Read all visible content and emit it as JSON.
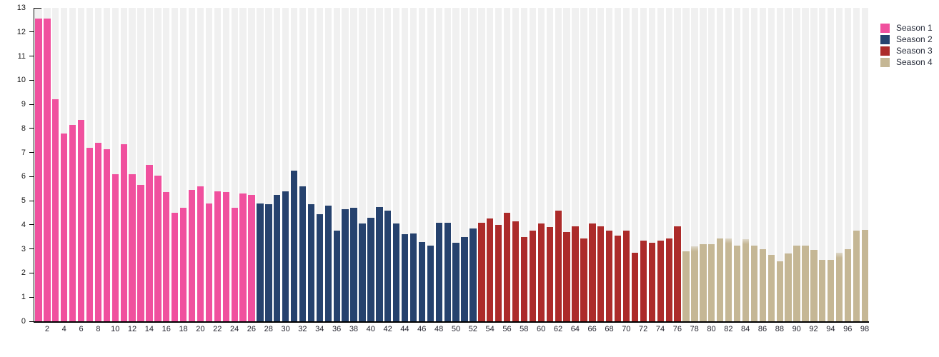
{
  "chart_data": {
    "type": "bar",
    "title": "",
    "xlabel": "",
    "ylabel": "",
    "ylim": [
      0,
      13
    ],
    "y_ticks": [
      0,
      1,
      2,
      3,
      4,
      5,
      6,
      7,
      8,
      9,
      10,
      11,
      12,
      13
    ],
    "x_tick_labels": [
      "2",
      "4",
      "6",
      "8",
      "10",
      "12",
      "14",
      "16",
      "18",
      "20",
      "22",
      "24",
      "26",
      "28",
      "30",
      "32",
      "34",
      "36",
      "38",
      "40",
      "42",
      "44",
      "46",
      "48",
      "50",
      "52",
      "54",
      "56",
      "58",
      "60",
      "62",
      "64",
      "66",
      "68",
      "70",
      "72",
      "74",
      "76",
      "78",
      "80",
      "82",
      "84",
      "86",
      "88",
      "90",
      "92",
      "94",
      "96",
      "98"
    ],
    "total_bars": 98,
    "legend_position": "top-right-outside",
    "grid": "full-height light gray column stripe behind each bar",
    "fade_top_episodes": [
      78,
      82,
      84,
      95
    ],
    "series": [
      {
        "name": "Season 1",
        "color": "#f0509e",
        "first_episode": 1,
        "values": [
          12.55,
          12.55,
          9.2,
          7.8,
          8.15,
          8.35,
          7.2,
          7.4,
          7.15,
          6.1,
          7.35,
          6.1,
          5.65,
          6.5,
          6.05,
          5.35,
          4.5,
          4.7,
          5.45,
          5.6,
          4.9,
          5.4,
          5.35,
          4.7,
          5.3,
          5.25
        ]
      },
      {
        "name": "Season 2",
        "color": "#26426e",
        "first_episode": 27,
        "values": [
          4.9,
          4.85,
          5.25,
          5.4,
          6.25,
          5.6,
          4.85,
          4.45,
          4.8,
          3.75,
          4.65,
          4.7,
          4.05,
          4.3,
          4.75,
          4.6,
          4.05,
          3.6,
          3.65,
          3.3,
          3.15,
          4.1,
          4.1,
          3.25,
          3.5,
          3.85
        ]
      },
      {
        "name": "Season 3",
        "color": "#ac2b2a",
        "first_episode": 53,
        "values": [
          4.1,
          4.25,
          4.0,
          4.5,
          4.15,
          3.5,
          3.75,
          4.05,
          3.9,
          4.6,
          3.7,
          3.95,
          3.45,
          4.05,
          3.95,
          3.75,
          3.55,
          3.75,
          2.85,
          3.35,
          3.25,
          3.35,
          3.45,
          3.95
        ]
      },
      {
        "name": "Season 4",
        "color": "#c5b795",
        "first_episode": 77,
        "values": [
          2.9,
          3.1,
          3.2,
          3.2,
          3.45,
          3.45,
          3.15,
          3.4,
          3.15,
          3.0,
          2.75,
          2.5,
          2.8,
          3.15,
          3.15,
          2.95,
          2.55,
          2.55,
          2.85,
          3.0,
          3.75,
          3.8
        ]
      }
    ]
  },
  "colors": {
    "background": "#ffffff",
    "stripe": "#f0f0f0",
    "axis": "#000000",
    "axis_text": "#1a1a1a",
    "legend_text": "#272c3a"
  }
}
